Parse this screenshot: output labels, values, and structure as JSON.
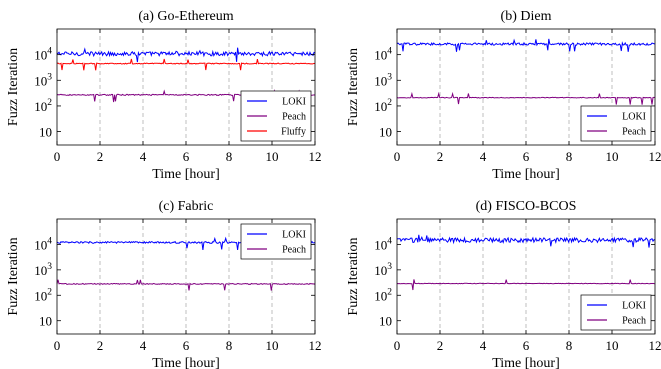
{
  "chart_data": [
    {
      "type": "line",
      "title": "(a) Go-Ethereum",
      "xlabel": "Time [hour]",
      "ylabel": "Fuzz Iteration",
      "xlim": [
        0,
        12
      ],
      "ylim": [
        3,
        100000
      ],
      "yscale": "log",
      "xticks": [
        0,
        2,
        4,
        6,
        8,
        10,
        12
      ],
      "yticks": [
        {
          "value": 10,
          "label": "10"
        },
        {
          "value": 100,
          "label": "10",
          "sup": "2"
        },
        {
          "value": 1000,
          "label": "10",
          "sup": "3"
        },
        {
          "value": 10000,
          "label": "10",
          "sup": "4"
        }
      ],
      "grid": "vertical dashed",
      "legend_position": "bottom-right",
      "series": [
        {
          "name": "LOKI",
          "color": "#0000ff",
          "level": 11000,
          "noise": 0.18
        },
        {
          "name": "Peach",
          "color": "#800080",
          "level": 270,
          "noise": 0.05
        },
        {
          "name": "Fluffy",
          "color": "#ff0000",
          "level": 4500,
          "noise": 0.04
        }
      ]
    },
    {
      "type": "line",
      "title": "(b) Diem",
      "xlabel": "Time [hour]",
      "ylabel": "Fuzz Iteration",
      "xlim": [
        0,
        12
      ],
      "ylim": [
        3,
        100000
      ],
      "yscale": "log",
      "xticks": [
        0,
        2,
        4,
        6,
        8,
        10,
        12
      ],
      "yticks": [
        {
          "value": 10,
          "label": "10"
        },
        {
          "value": 100,
          "label": "10",
          "sup": "2"
        },
        {
          "value": 1000,
          "label": "10",
          "sup": "3"
        },
        {
          "value": 10000,
          "label": "10",
          "sup": "4"
        }
      ],
      "grid": "vertical dashed",
      "legend_position": "bottom-right",
      "series": [
        {
          "name": "LOKI",
          "color": "#0000ff",
          "level": 26000,
          "noise": 0.1
        },
        {
          "name": "Peach",
          "color": "#800080",
          "level": 210,
          "noise": 0.03
        }
      ]
    },
    {
      "type": "line",
      "title": "(c) Fabric",
      "xlabel": "Time [hour]",
      "ylabel": "Fuzz Iteration",
      "xlim": [
        0,
        12
      ],
      "ylim": [
        3,
        100000
      ],
      "yscale": "log",
      "xticks": [
        0,
        2,
        4,
        6,
        8,
        10,
        12
      ],
      "yticks": [
        {
          "value": 10,
          "label": "10"
        },
        {
          "value": 100,
          "label": "10",
          "sup": "2"
        },
        {
          "value": 1000,
          "label": "10",
          "sup": "3"
        },
        {
          "value": 10000,
          "label": "10",
          "sup": "4"
        }
      ],
      "grid": "vertical dashed",
      "legend_position": "top-right",
      "series": [
        {
          "name": "LOKI",
          "color": "#0000ff",
          "level": 12000,
          "noise": 0.08
        },
        {
          "name": "Peach",
          "color": "#800080",
          "level": 280,
          "noise": 0.04
        }
      ]
    },
    {
      "type": "line",
      "title": "(d) FISCO-BCOS",
      "xlabel": "Time [hour]",
      "ylabel": "Fuzz Iteration",
      "xlim": [
        0,
        12
      ],
      "ylim": [
        3,
        100000
      ],
      "yscale": "log",
      "xticks": [
        0,
        2,
        4,
        6,
        8,
        10,
        12
      ],
      "yticks": [
        {
          "value": 10,
          "label": "10"
        },
        {
          "value": 100,
          "label": "10",
          "sup": "2"
        },
        {
          "value": 1000,
          "label": "10",
          "sup": "3"
        },
        {
          "value": 10000,
          "label": "10",
          "sup": "4"
        }
      ],
      "grid": "vertical dashed",
      "legend_position": "bottom-right",
      "series": [
        {
          "name": "LOKI",
          "color": "#0000ff",
          "level": 15000,
          "noise": 0.2
        },
        {
          "name": "Peach",
          "color": "#800080",
          "level": 290,
          "noise": 0.02
        }
      ]
    }
  ]
}
